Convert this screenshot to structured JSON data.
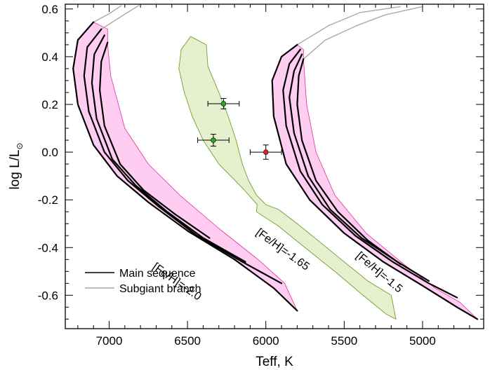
{
  "chart_data": {
    "type": "scatter",
    "xlabel": "Teff, K",
    "ylabel_main": "log L/L",
    "ylabel_sub": "⊙",
    "xlim": [
      7280,
      4610
    ],
    "ylim": [
      -0.74,
      0.62
    ],
    "xticks": [
      7000,
      6500,
      6000,
      5500,
      5000
    ],
    "xtick_labels": [
      "7000",
      "6500",
      "6000",
      "5500",
      "5000"
    ],
    "xminor_step": 100,
    "yticks": [
      -0.6,
      -0.4,
      -0.2,
      0.0,
      0.2,
      0.4,
      0.6
    ],
    "ytick_labels": [
      "-0.6",
      "-0.4",
      "-0.2",
      "0.0",
      "0.2",
      "0.4",
      "0.6"
    ],
    "yminor_step": 0.05,
    "legend": {
      "placement": "bottom-left",
      "entries": [
        {
          "label": "Main sequence",
          "color": "#000000"
        },
        {
          "label": "Subgiant branch",
          "color": "#aaaaaa"
        }
      ]
    },
    "colors": {
      "pink_fill": "#ffccf2",
      "pink_edge": "#e0309a",
      "green_fill": "#e6f0cf",
      "green_edge": "#7aa83a",
      "label_pink": "#e0187a",
      "label_green": "#2f7d1e",
      "star_green": "#22aa22",
      "star_red": "#dd2222"
    },
    "bands": [
      {
        "label": "[Fe/H]=-2.0",
        "label_color": "#e0187a",
        "label_anchor": [
          6580,
          -0.555
        ],
        "label_angle": 35,
        "tracks": [
          [
            [
              7100,
              0.545
            ],
            [
              7200,
              0.47
            ],
            [
              7230,
              0.35
            ],
            [
              7200,
              0.2
            ],
            [
              7100,
              0.03
            ],
            [
              6950,
              -0.1
            ],
            [
              6750,
              -0.21
            ],
            [
              6500,
              -0.33
            ],
            [
              6200,
              -0.45
            ],
            [
              5950,
              -0.57
            ],
            [
              5800,
              -0.665
            ]
          ],
          [
            [
              7050,
              0.515
            ],
            [
              7140,
              0.44
            ],
            [
              7160,
              0.32
            ],
            [
              7130,
              0.17
            ],
            [
              7030,
              0.0
            ],
            [
              6880,
              -0.12
            ],
            [
              6680,
              -0.23
            ],
            [
              6440,
              -0.35
            ],
            [
              6150,
              -0.46
            ],
            [
              5900,
              -0.55
            ]
          ],
          [
            [
              7030,
              0.49
            ],
            [
              7095,
              0.41
            ],
            [
              7110,
              0.29
            ],
            [
              7080,
              0.14
            ],
            [
              6980,
              -0.03
            ],
            [
              6830,
              -0.14
            ],
            [
              6630,
              -0.25
            ],
            [
              6400,
              -0.36
            ],
            [
              6130,
              -0.46
            ]
          ],
          [
            [
              7010,
              0.46
            ],
            [
              7050,
              0.38
            ],
            [
              7060,
              0.26
            ],
            [
              7030,
              0.11
            ],
            [
              6930,
              -0.05
            ],
            [
              6780,
              -0.16
            ],
            [
              6580,
              -0.26
            ],
            [
              6360,
              -0.36
            ]
          ]
        ],
        "subgiant_tracks": [
          [
            [
              7100,
              0.545
            ],
            [
              7000,
              0.58
            ],
            [
              6920,
              0.615
            ]
          ],
          [
            [
              7050,
              0.515
            ],
            [
              6920,
              0.57
            ],
            [
              6810,
              0.615
            ]
          ]
        ],
        "envelope": [
          [
            7100,
            0.545
          ],
          [
            7010,
            0.515
          ],
          [
            7010,
            0.45
          ],
          [
            6990,
            0.32
          ],
          [
            6900,
            0.1
          ],
          [
            6750,
            -0.05
          ],
          [
            6550,
            -0.18
          ],
          [
            6300,
            -0.32
          ],
          [
            6050,
            -0.45
          ],
          [
            5880,
            -0.55
          ],
          [
            5800,
            -0.665
          ],
          [
            5950,
            -0.57
          ],
          [
            6200,
            -0.45
          ],
          [
            6500,
            -0.33
          ],
          [
            6750,
            -0.21
          ],
          [
            6950,
            -0.1
          ],
          [
            7100,
            0.03
          ],
          [
            7200,
            0.2
          ],
          [
            7230,
            0.35
          ],
          [
            7200,
            0.47
          ]
        ]
      },
      {
        "label": "[Fe/H]=-1.5",
        "label_color": "#e0187a",
        "label_anchor": [
          5290,
          -0.515
        ],
        "label_angle": 40,
        "tracks": [
          [
            [
              5800,
              0.45
            ],
            [
              5900,
              0.4
            ],
            [
              5960,
              0.3
            ],
            [
              5950,
              0.15
            ],
            [
              5870,
              -0.05
            ],
            [
              5720,
              -0.2
            ],
            [
              5500,
              -0.34
            ],
            [
              5250,
              -0.46
            ],
            [
              5000,
              -0.56
            ],
            [
              4780,
              -0.65
            ],
            [
              4650,
              -0.7
            ]
          ],
          [
            [
              5780,
              0.43
            ],
            [
              5850,
              0.37
            ],
            [
              5890,
              0.26
            ],
            [
              5870,
              0.11
            ],
            [
              5780,
              -0.08
            ],
            [
              5640,
              -0.22
            ],
            [
              5430,
              -0.35
            ],
            [
              5190,
              -0.46
            ],
            [
              4960,
              -0.55
            ],
            [
              4780,
              -0.61
            ]
          ],
          [
            [
              5770,
              0.41
            ],
            [
              5820,
              0.34
            ],
            [
              5850,
              0.23
            ],
            [
              5820,
              0.08
            ],
            [
              5730,
              -0.1
            ],
            [
              5590,
              -0.24
            ],
            [
              5390,
              -0.36
            ],
            [
              5160,
              -0.46
            ],
            [
              4960,
              -0.54
            ]
          ],
          [
            [
              5760,
              0.39
            ],
            [
              5790,
              0.32
            ],
            [
              5800,
              0.2
            ],
            [
              5770,
              0.05
            ],
            [
              5680,
              -0.12
            ],
            [
              5540,
              -0.25
            ],
            [
              5350,
              -0.37
            ],
            [
              5140,
              -0.47
            ]
          ]
        ],
        "subgiant_tracks": [
          [
            [
              5800,
              0.45
            ],
            [
              5600,
              0.53
            ],
            [
              5400,
              0.585
            ],
            [
              5140,
              0.61
            ]
          ],
          [
            [
              5760,
              0.39
            ],
            [
              5620,
              0.47
            ],
            [
              5420,
              0.53
            ],
            [
              5240,
              0.575
            ],
            [
              5000,
              0.61
            ]
          ]
        ],
        "envelope": [
          [
            5800,
            0.45
          ],
          [
            5760,
            0.43
          ],
          [
            5760,
            0.39
          ],
          [
            5740,
            0.2
          ],
          [
            5680,
            0.0
          ],
          [
            5560,
            -0.18
          ],
          [
            5360,
            -0.34
          ],
          [
            5120,
            -0.47
          ],
          [
            4920,
            -0.57
          ],
          [
            4760,
            -0.63
          ],
          [
            4650,
            -0.7
          ],
          [
            4780,
            -0.65
          ],
          [
            5000,
            -0.56
          ],
          [
            5250,
            -0.46
          ],
          [
            5500,
            -0.34
          ],
          [
            5720,
            -0.2
          ],
          [
            5870,
            -0.05
          ],
          [
            5950,
            0.15
          ],
          [
            5960,
            0.3
          ],
          [
            5900,
            0.4
          ]
        ]
      }
    ],
    "green_region": {
      "label": "[Fe/H]=-1.65",
      "label_color": "#2f7d1e",
      "label_anchor": [
        5905,
        -0.42
      ],
      "label_angle": 36,
      "outline": [
        [
          6480,
          0.485
        ],
        [
          6380,
          0.45
        ],
        [
          6370,
          0.36
        ],
        [
          6300,
          0.25
        ],
        [
          6240,
          0.15
        ],
        [
          6190,
          0.05
        ],
        [
          6150,
          -0.05
        ],
        [
          6110,
          -0.12
        ],
        [
          6060,
          -0.18
        ],
        [
          6000,
          -0.22
        ],
        [
          5920,
          -0.24
        ],
        [
          5800,
          -0.3
        ],
        [
          5650,
          -0.38
        ],
        [
          5500,
          -0.46
        ],
        [
          5350,
          -0.54
        ],
        [
          5200,
          -0.6
        ],
        [
          5170,
          -0.7
        ],
        [
          5230,
          -0.68
        ],
        [
          5380,
          -0.6
        ],
        [
          5560,
          -0.5
        ],
        [
          5750,
          -0.4
        ],
        [
          5920,
          -0.31
        ],
        [
          6060,
          -0.25
        ],
        [
          6055,
          -0.22
        ],
        [
          6150,
          -0.15
        ],
        [
          6300,
          -0.05
        ],
        [
          6400,
          0.05
        ],
        [
          6470,
          0.15
        ],
        [
          6520,
          0.25
        ],
        [
          6555,
          0.35
        ],
        [
          6540,
          0.43
        ]
      ]
    },
    "stars": [
      {
        "teff": 6270,
        "teff_err": 100,
        "logL": 0.203,
        "logL_err": 0.022,
        "color": "#22aa22"
      },
      {
        "teff": 6335,
        "teff_err": 100,
        "logL": 0.05,
        "logL_err": 0.025,
        "color": "#22aa22"
      },
      {
        "teff": 6000,
        "teff_err": 100,
        "logL": 0.0,
        "logL_err": 0.03,
        "color": "#dd2222"
      }
    ]
  }
}
